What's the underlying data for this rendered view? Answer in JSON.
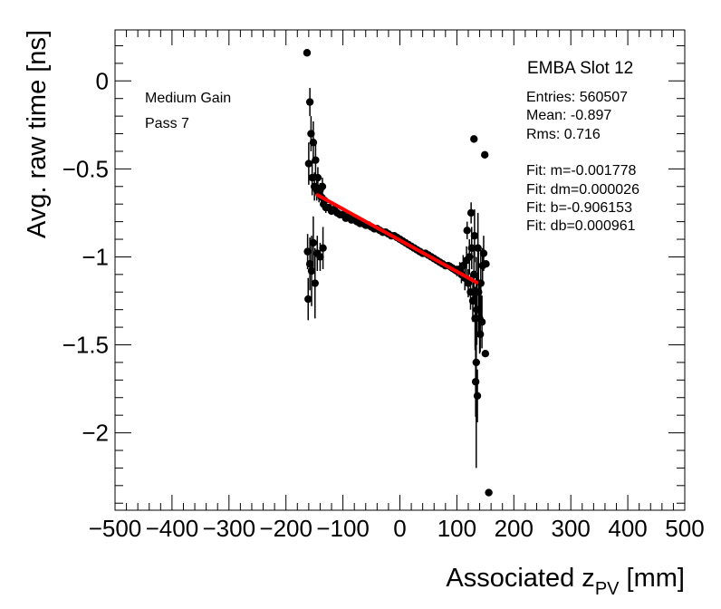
{
  "chart_data": {
    "type": "scatter",
    "xlabel_main": "Associated z",
    "xlabel_sub": "PV",
    "xlabel_unit": " [mm]",
    "ylabel": "Avg. raw time [ns]",
    "xlim": [
      -500,
      500
    ],
    "ylim": [
      -2.44,
      0.29
    ],
    "x_ticks": [
      -500,
      -400,
      -300,
      -200,
      -100,
      0,
      100,
      200,
      300,
      400,
      500
    ],
    "x_tick_labels": [
      "−500",
      "−400",
      "−300",
      "−200",
      "−100",
      "0",
      "100",
      "200",
      "300",
      "400",
      "500"
    ],
    "y_ticks": [
      0,
      -0.5,
      -1,
      -1.5,
      -2
    ],
    "y_tick_labels": [
      "0",
      "−0.5",
      "−1",
      "−1.5",
      "−2"
    ],
    "grid": false,
    "annotations": {
      "line1": "Medium Gain",
      "line2": "Pass 7"
    },
    "stats_box": {
      "title": "EMBA Slot 12",
      "entries": "Entries: 560507",
      "mean": "Mean: -0.897",
      "rms": "Rms: 0.716",
      "fit_m": "Fit: m=-0.001778",
      "fit_dm": "Fit: dm=0.000026",
      "fit_b": "Fit: b=-0.906153",
      "fit_db": "Fit: db=0.000961"
    },
    "fit": {
      "slope": -0.001778,
      "intercept": -0.906153,
      "x_range": [
        -145,
        135
      ],
      "color": "#ff0000"
    },
    "marker_color": "#000000",
    "series": [
      {
        "values": [
          [
            -163,
            0.16,
            0.0
          ],
          [
            -160,
            -0.47,
            0.12
          ],
          [
            -158,
            -0.12,
            0.08
          ],
          [
            -156,
            -0.3,
            0.1
          ],
          [
            -154,
            -0.55,
            0.1
          ],
          [
            -152,
            -0.35,
            0.12
          ],
          [
            -150,
            -0.6,
            0.08
          ],
          [
            -148,
            -0.45,
            0.1
          ],
          [
            -146,
            -0.62,
            0.06
          ],
          [
            -144,
            -0.55,
            0.06
          ],
          [
            -142,
            -0.64,
            0.05
          ],
          [
            -140,
            -0.62,
            0.04
          ],
          [
            -138,
            -0.66,
            0.04
          ],
          [
            -136,
            -0.6,
            0.05
          ],
          [
            -134,
            -0.7,
            0.03
          ],
          [
            -132,
            -0.68,
            0.03
          ],
          [
            -162,
            -0.97,
            0.1
          ],
          [
            -161,
            -1.24,
            0.12
          ],
          [
            -158,
            -1.04,
            0.15
          ],
          [
            -155,
            -1.08,
            0.2
          ],
          [
            -152,
            -0.92,
            0.15
          ],
          [
            -149,
            -1.15,
            0.2
          ],
          [
            -145,
            -0.98,
            0.1
          ],
          [
            -140,
            -1.0,
            0.08
          ],
          [
            -135,
            -0.95,
            0.12
          ],
          [
            -130,
            -0.72,
            0.03
          ],
          [
            -125,
            -0.72,
            0.02
          ],
          [
            -120,
            -0.74,
            0.02
          ],
          [
            -115,
            -0.73,
            0.02
          ],
          [
            -110,
            -0.75,
            0.02
          ],
          [
            -105,
            -0.76,
            0.02
          ],
          [
            -100,
            -0.76,
            0.02
          ],
          [
            -95,
            -0.78,
            0.015
          ],
          [
            -90,
            -0.77,
            0.015
          ],
          [
            -85,
            -0.79,
            0.015
          ],
          [
            -80,
            -0.79,
            0.015
          ],
          [
            -75,
            -0.8,
            0.015
          ],
          [
            -70,
            -0.81,
            0.015
          ],
          [
            -65,
            -0.81,
            0.015
          ],
          [
            -60,
            -0.82,
            0.012
          ],
          [
            -55,
            -0.82,
            0.012
          ],
          [
            -50,
            -0.83,
            0.012
          ],
          [
            -45,
            -0.84,
            0.012
          ],
          [
            -40,
            -0.84,
            0.012
          ],
          [
            -35,
            -0.85,
            0.012
          ],
          [
            -30,
            -0.86,
            0.012
          ],
          [
            -25,
            -0.86,
            0.012
          ],
          [
            -20,
            -0.87,
            0.012
          ],
          [
            -15,
            -0.88,
            0.012
          ],
          [
            -10,
            -0.88,
            0.012
          ],
          [
            -5,
            -0.89,
            0.012
          ],
          [
            0,
            -0.9,
            0.012
          ],
          [
            5,
            -0.91,
            0.012
          ],
          [
            10,
            -0.92,
            0.012
          ],
          [
            15,
            -0.93,
            0.012
          ],
          [
            20,
            -0.94,
            0.012
          ],
          [
            25,
            -0.95,
            0.012
          ],
          [
            30,
            -0.96,
            0.012
          ],
          [
            35,
            -0.97,
            0.012
          ],
          [
            40,
            -0.98,
            0.013
          ],
          [
            45,
            -0.98,
            0.013
          ],
          [
            50,
            -0.99,
            0.013
          ],
          [
            55,
            -1.0,
            0.014
          ],
          [
            60,
            -1.01,
            0.015
          ],
          [
            65,
            -1.02,
            0.015
          ],
          [
            70,
            -1.03,
            0.016
          ],
          [
            75,
            -1.04,
            0.018
          ],
          [
            80,
            -1.05,
            0.02
          ],
          [
            85,
            -1.05,
            0.02
          ],
          [
            90,
            -1.06,
            0.025
          ],
          [
            95,
            -1.07,
            0.025
          ],
          [
            100,
            -1.08,
            0.03
          ],
          [
            105,
            -1.07,
            0.04
          ],
          [
            108,
            -1.1,
            0.05
          ],
          [
            111,
            -1.05,
            0.06
          ],
          [
            114,
            -1.12,
            0.07
          ],
          [
            117,
            -1.02,
            0.08
          ],
          [
            120,
            -1.15,
            0.08
          ],
          [
            122,
            -1.0,
            0.1
          ],
          [
            124,
            -1.2,
            0.1
          ],
          [
            126,
            -0.95,
            0.12
          ],
          [
            128,
            -1.25,
            0.12
          ],
          [
            130,
            -1.1,
            0.15
          ],
          [
            131,
            -0.88,
            0.15
          ],
          [
            132,
            -1.35,
            0.18
          ],
          [
            133,
            -1.71,
            0.2
          ],
          [
            134,
            -1.6,
            0.6
          ],
          [
            135,
            -1.3,
            0.2
          ],
          [
            136,
            -1.79,
            0.15
          ],
          [
            137,
            -0.95,
            0.2
          ],
          [
            138,
            -1.2,
            0.25
          ],
          [
            140,
            -1.35,
            0.2
          ],
          [
            141,
            -1.44,
            0.1
          ],
          [
            142,
            -1.15,
            0.2
          ],
          [
            144,
            -1.37,
            0.15
          ],
          [
            145,
            -1.05,
            0.1
          ],
          [
            147,
            -0.98,
            0.1
          ],
          [
            149,
            -0.42,
            0.0
          ],
          [
            150,
            -1.55,
            0.0
          ],
          [
            151,
            -1.04,
            0.0
          ],
          [
            156,
            -2.34,
            0.0
          ],
          [
            130,
            -0.33,
            0.0
          ],
          [
            125,
            -0.75,
            0.06
          ],
          [
            118,
            -0.85,
            0.05
          ]
        ]
      }
    ]
  }
}
